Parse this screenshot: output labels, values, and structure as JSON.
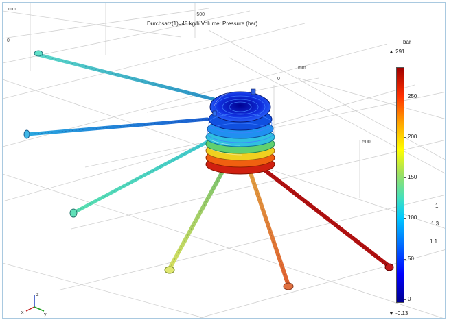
{
  "plot": {
    "title": "Durchsatz(1)=48 kg/h  Volume: Pressure (bar)"
  },
  "axes": {
    "unit_top_left": "mm",
    "unit_mid": "mm",
    "tick_top": "-500",
    "tick_left": "0",
    "tick_mid": "0",
    "tick_right": "500"
  },
  "colorbar": {
    "unit": "bar",
    "max_label": "▲ 291",
    "min_label": "▼ -0.13",
    "ticks": [
      "250",
      "200",
      "150",
      "100",
      "50",
      "0"
    ],
    "gradient_colors": [
      "#00008f",
      "#0000ff",
      "#00c8ff",
      "#a0e060",
      "#ffff00",
      "#ff3000",
      "#a00000"
    ]
  },
  "side_labels": [
    "1",
    "1.3",
    "1.1"
  ],
  "triad": {
    "z": "z",
    "x": "x",
    "y": "y"
  },
  "icons": {
    "triad": "axis-triad-icon"
  }
}
